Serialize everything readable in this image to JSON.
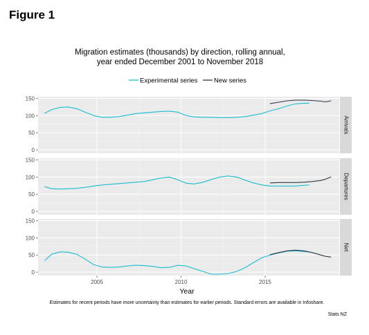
{
  "figure_label": "Figure 1",
  "chart_data": {
    "type": "line",
    "title": "Migration estimates (thousands) by direction, rolling annual,",
    "subtitle": "year ended December 2001 to November 2018",
    "xlabel": "Year",
    "ylabel": "",
    "xlim": [
      2001.5,
      2019.4
    ],
    "x_ticks": [
      2005,
      2010,
      2015
    ],
    "ylim": [
      -10,
      155
    ],
    "y_ticks": [
      0,
      50,
      100,
      150
    ],
    "grid": true,
    "legend_position": "top",
    "caption": "Estimates for recent periods have more uncertainty than estimates for earlier periods. Standard errors are available in Infoshare.",
    "source": "Stats NZ",
    "colors": {
      "experimental": "#17becf",
      "new": "#2d3547",
      "panel_bg": "#ebebeb",
      "strip_bg": "#d9d9d9"
    },
    "series_names": [
      "Experimental series",
      "New series"
    ],
    "panels": [
      {
        "name": "Arrivals",
        "series": [
          {
            "name": "Experimental series",
            "points": [
              [
                2001.9,
                107
              ],
              [
                2002.3,
                117
              ],
              [
                2002.8,
                124
              ],
              [
                2003.3,
                125
              ],
              [
                2003.8,
                120
              ],
              [
                2004.3,
                110
              ],
              [
                2004.8,
                100
              ],
              [
                2005.3,
                95
              ],
              [
                2005.8,
                95
              ],
              [
                2006.3,
                97
              ],
              [
                2006.8,
                101
              ],
              [
                2007.3,
                106
              ],
              [
                2007.8,
                108
              ],
              [
                2008.3,
                110
              ],
              [
                2008.8,
                112
              ],
              [
                2009.3,
                113
              ],
              [
                2009.8,
                110
              ],
              [
                2010.3,
                100
              ],
              [
                2010.8,
                96
              ],
              [
                2011.3,
                95
              ],
              [
                2011.8,
                95
              ],
              [
                2012.3,
                94
              ],
              [
                2012.8,
                94
              ],
              [
                2013.3,
                95
              ],
              [
                2013.8,
                97
              ],
              [
                2014.3,
                101
              ],
              [
                2014.8,
                106
              ],
              [
                2015.3,
                114
              ],
              [
                2015.8,
                120
              ],
              [
                2016.3,
                128
              ],
              [
                2016.8,
                134
              ],
              [
                2017.3,
                136
              ],
              [
                2017.6,
                136
              ]
            ]
          },
          {
            "name": "New series",
            "points": [
              [
                2015.3,
                135
              ],
              [
                2015.8,
                139
              ],
              [
                2016.3,
                143
              ],
              [
                2016.8,
                145
              ],
              [
                2017.3,
                145
              ],
              [
                2017.8,
                144
              ],
              [
                2018.3,
                142
              ],
              [
                2018.6,
                140
              ],
              [
                2018.9,
                143
              ]
            ]
          }
        ]
      },
      {
        "name": "Departures",
        "series": [
          {
            "name": "Experimental series",
            "points": [
              [
                2001.9,
                72
              ],
              [
                2002.3,
                66
              ],
              [
                2002.8,
                65
              ],
              [
                2003.3,
                66
              ],
              [
                2003.8,
                67
              ],
              [
                2004.3,
                70
              ],
              [
                2004.8,
                74
              ],
              [
                2005.3,
                77
              ],
              [
                2005.8,
                79
              ],
              [
                2006.3,
                81
              ],
              [
                2006.8,
                83
              ],
              [
                2007.3,
                85
              ],
              [
                2007.8,
                87
              ],
              [
                2008.3,
                92
              ],
              [
                2008.8,
                97
              ],
              [
                2009.3,
                100
              ],
              [
                2009.8,
                92
              ],
              [
                2010.3,
                82
              ],
              [
                2010.8,
                80
              ],
              [
                2011.3,
                85
              ],
              [
                2011.8,
                93
              ],
              [
                2012.3,
                100
              ],
              [
                2012.8,
                103
              ],
              [
                2013.3,
                100
              ],
              [
                2013.8,
                91
              ],
              [
                2014.3,
                83
              ],
              [
                2014.8,
                77
              ],
              [
                2015.3,
                74
              ],
              [
                2015.8,
                74
              ],
              [
                2016.3,
                74
              ],
              [
                2016.8,
                74
              ],
              [
                2017.3,
                76
              ],
              [
                2017.6,
                77
              ]
            ]
          },
          {
            "name": "New series",
            "points": [
              [
                2015.3,
                83
              ],
              [
                2015.8,
                84
              ],
              [
                2016.3,
                84
              ],
              [
                2016.8,
                84
              ],
              [
                2017.3,
                85
              ],
              [
                2017.8,
                87
              ],
              [
                2018.3,
                90
              ],
              [
                2018.6,
                94
              ],
              [
                2018.9,
                100
              ]
            ]
          }
        ]
      },
      {
        "name": "Net",
        "series": [
          {
            "name": "Experimental series",
            "points": [
              [
                2001.9,
                34
              ],
              [
                2002.3,
                52
              ],
              [
                2002.8,
                59
              ],
              [
                2003.3,
                58
              ],
              [
                2003.8,
                52
              ],
              [
                2004.3,
                38
              ],
              [
                2004.8,
                22
              ],
              [
                2005.3,
                15
              ],
              [
                2005.8,
                14
              ],
              [
                2006.3,
                15
              ],
              [
                2006.8,
                18
              ],
              [
                2007.3,
                20
              ],
              [
                2007.8,
                19
              ],
              [
                2008.3,
                17
              ],
              [
                2008.8,
                13
              ],
              [
                2009.3,
                14
              ],
              [
                2009.8,
                20
              ],
              [
                2010.3,
                18
              ],
              [
                2010.8,
                10
              ],
              [
                2011.3,
                2
              ],
              [
                2011.8,
                -6
              ],
              [
                2012.3,
                -6
              ],
              [
                2012.8,
                -4
              ],
              [
                2013.3,
                2
              ],
              [
                2013.8,
                13
              ],
              [
                2014.3,
                28
              ],
              [
                2014.8,
                42
              ],
              [
                2015.3,
                50
              ],
              [
                2015.8,
                56
              ],
              [
                2016.3,
                61
              ],
              [
                2016.8,
                62
              ],
              [
                2017.3,
                60
              ],
              [
                2017.6,
                59
              ]
            ]
          },
          {
            "name": "New series",
            "points": [
              [
                2015.3,
                51
              ],
              [
                2015.8,
                57
              ],
              [
                2016.3,
                62
              ],
              [
                2016.8,
                64
              ],
              [
                2017.3,
                62
              ],
              [
                2017.8,
                57
              ],
              [
                2018.3,
                50
              ],
              [
                2018.6,
                46
              ],
              [
                2018.9,
                44
              ]
            ]
          }
        ]
      }
    ]
  }
}
